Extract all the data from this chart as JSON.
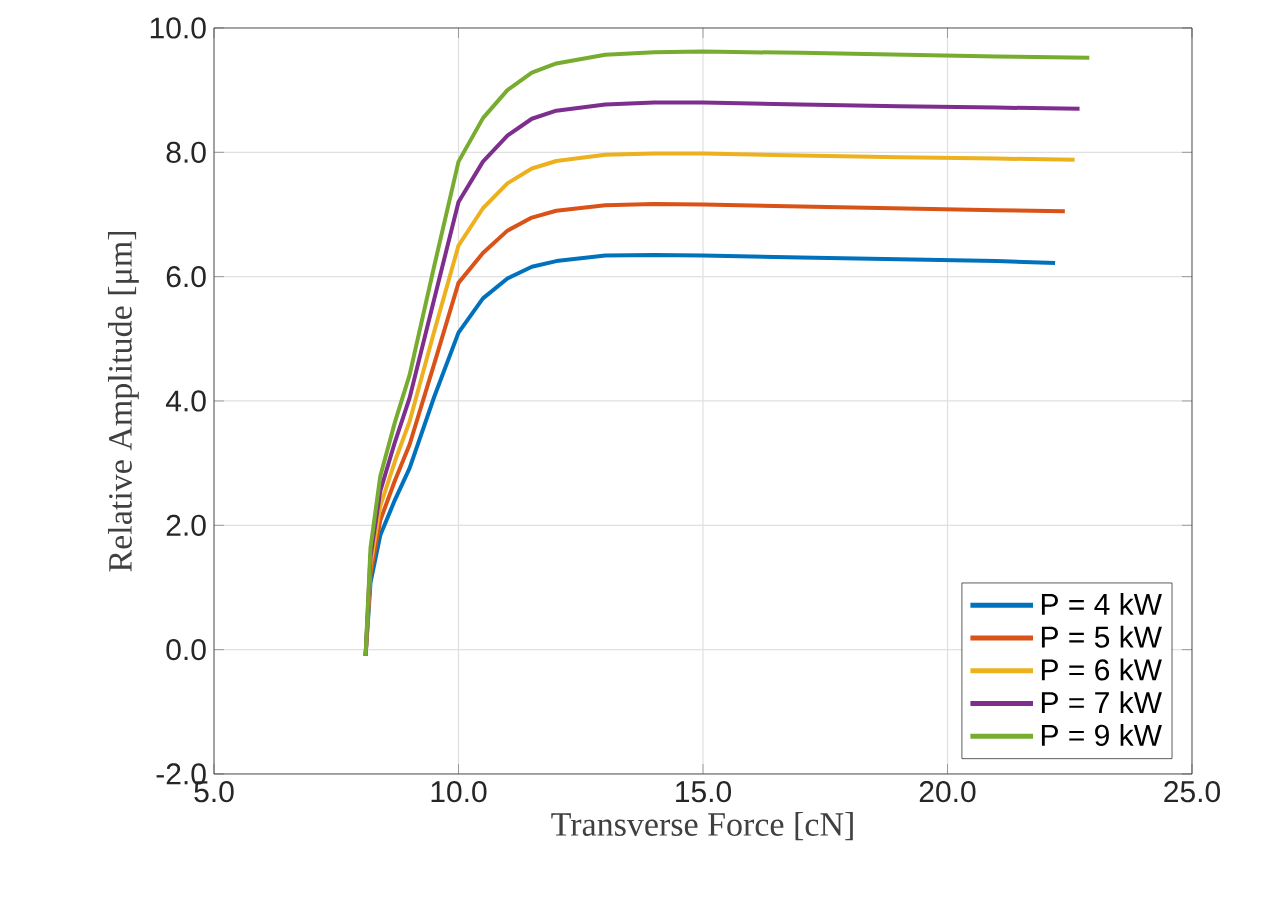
{
  "chart_data": {
    "type": "line",
    "xlabel": "Transverse Force [cN]",
    "ylabel": "Relative Amplitude [μm]",
    "xlim": [
      5,
      25
    ],
    "ylim": [
      -2,
      10
    ],
    "xticks": [
      {
        "value": 5,
        "label": "5.0"
      },
      {
        "value": 10,
        "label": "10.0"
      },
      {
        "value": 15,
        "label": "15.0"
      },
      {
        "value": 20,
        "label": "20.0"
      },
      {
        "value": 25,
        "label": "25.0"
      }
    ],
    "yticks": [
      {
        "value": -2,
        "label": "-2.0"
      },
      {
        "value": 0,
        "label": "0.0"
      },
      {
        "value": 2,
        "label": "2.0"
      },
      {
        "value": 4,
        "label": "4.0"
      },
      {
        "value": 6,
        "label": "6.0"
      },
      {
        "value": 8,
        "label": "8.0"
      },
      {
        "value": 10,
        "label": "10.0"
      }
    ],
    "grid": true,
    "legend": "bottom right",
    "marker": "none",
    "line_style": "solid",
    "series": [
      {
        "name": "P = 4 kW",
        "color": "#0072bd",
        "x": [
          8.1,
          8.2,
          8.4,
          8.7,
          9.0,
          9.5,
          10.0,
          10.5,
          11.0,
          11.5,
          12.0,
          13.0,
          14.0,
          15.0,
          17.0,
          19.0,
          21.0,
          22.2
        ],
        "values": [
          -0.1,
          1.08,
          1.84,
          2.41,
          2.92,
          4.06,
          5.1,
          5.65,
          5.97,
          6.16,
          6.25,
          6.34,
          6.35,
          6.34,
          6.31,
          6.28,
          6.25,
          6.22
        ]
      },
      {
        "name": "P = 5 kW",
        "color": "#d95319",
        "x": [
          8.1,
          8.2,
          8.4,
          8.7,
          9.0,
          9.5,
          10.0,
          10.5,
          11.0,
          11.5,
          12.0,
          13.0,
          14.0,
          15.0,
          17.0,
          19.0,
          21.0,
          22.4
        ],
        "values": [
          -0.1,
          1.22,
          2.08,
          2.72,
          3.3,
          4.59,
          5.9,
          6.38,
          6.74,
          6.95,
          7.06,
          7.15,
          7.17,
          7.16,
          7.13,
          7.1,
          7.07,
          7.05
        ]
      },
      {
        "name": "P = 6 kW",
        "color": "#edb120",
        "x": [
          8.1,
          8.2,
          8.4,
          8.7,
          9.0,
          9.5,
          10.0,
          10.5,
          11.0,
          11.5,
          12.0,
          13.0,
          14.0,
          15.0,
          17.0,
          19.0,
          21.0,
          22.6
        ],
        "values": [
          -0.1,
          1.36,
          2.31,
          3.03,
          3.67,
          5.11,
          6.5,
          7.1,
          7.5,
          7.74,
          7.86,
          7.96,
          7.98,
          7.98,
          7.95,
          7.92,
          7.9,
          7.88
        ]
      },
      {
        "name": "P = 7 kW",
        "color": "#7e2f8e",
        "x": [
          8.1,
          8.2,
          8.4,
          8.7,
          9.0,
          9.5,
          10.0,
          10.5,
          11.0,
          11.5,
          12.0,
          13.0,
          14.0,
          15.0,
          17.0,
          19.0,
          21.0,
          22.7
        ],
        "values": [
          -0.1,
          1.5,
          2.55,
          3.34,
          4.05,
          5.63,
          7.2,
          7.85,
          8.27,
          8.54,
          8.67,
          8.77,
          8.8,
          8.8,
          8.77,
          8.74,
          8.72,
          8.7
        ]
      },
      {
        "name": "P = 9 kW",
        "color": "#77ac30",
        "x": [
          8.1,
          8.2,
          8.4,
          8.7,
          9.0,
          9.5,
          10.0,
          10.5,
          11.0,
          11.5,
          12.0,
          13.0,
          14.0,
          15.0,
          17.0,
          19.0,
          21.0,
          22.9
        ],
        "values": [
          -0.1,
          1.64,
          2.79,
          3.66,
          4.42,
          6.16,
          7.85,
          8.55,
          9.0,
          9.28,
          9.43,
          9.57,
          9.61,
          9.62,
          9.6,
          9.57,
          9.54,
          9.52
        ]
      }
    ]
  }
}
